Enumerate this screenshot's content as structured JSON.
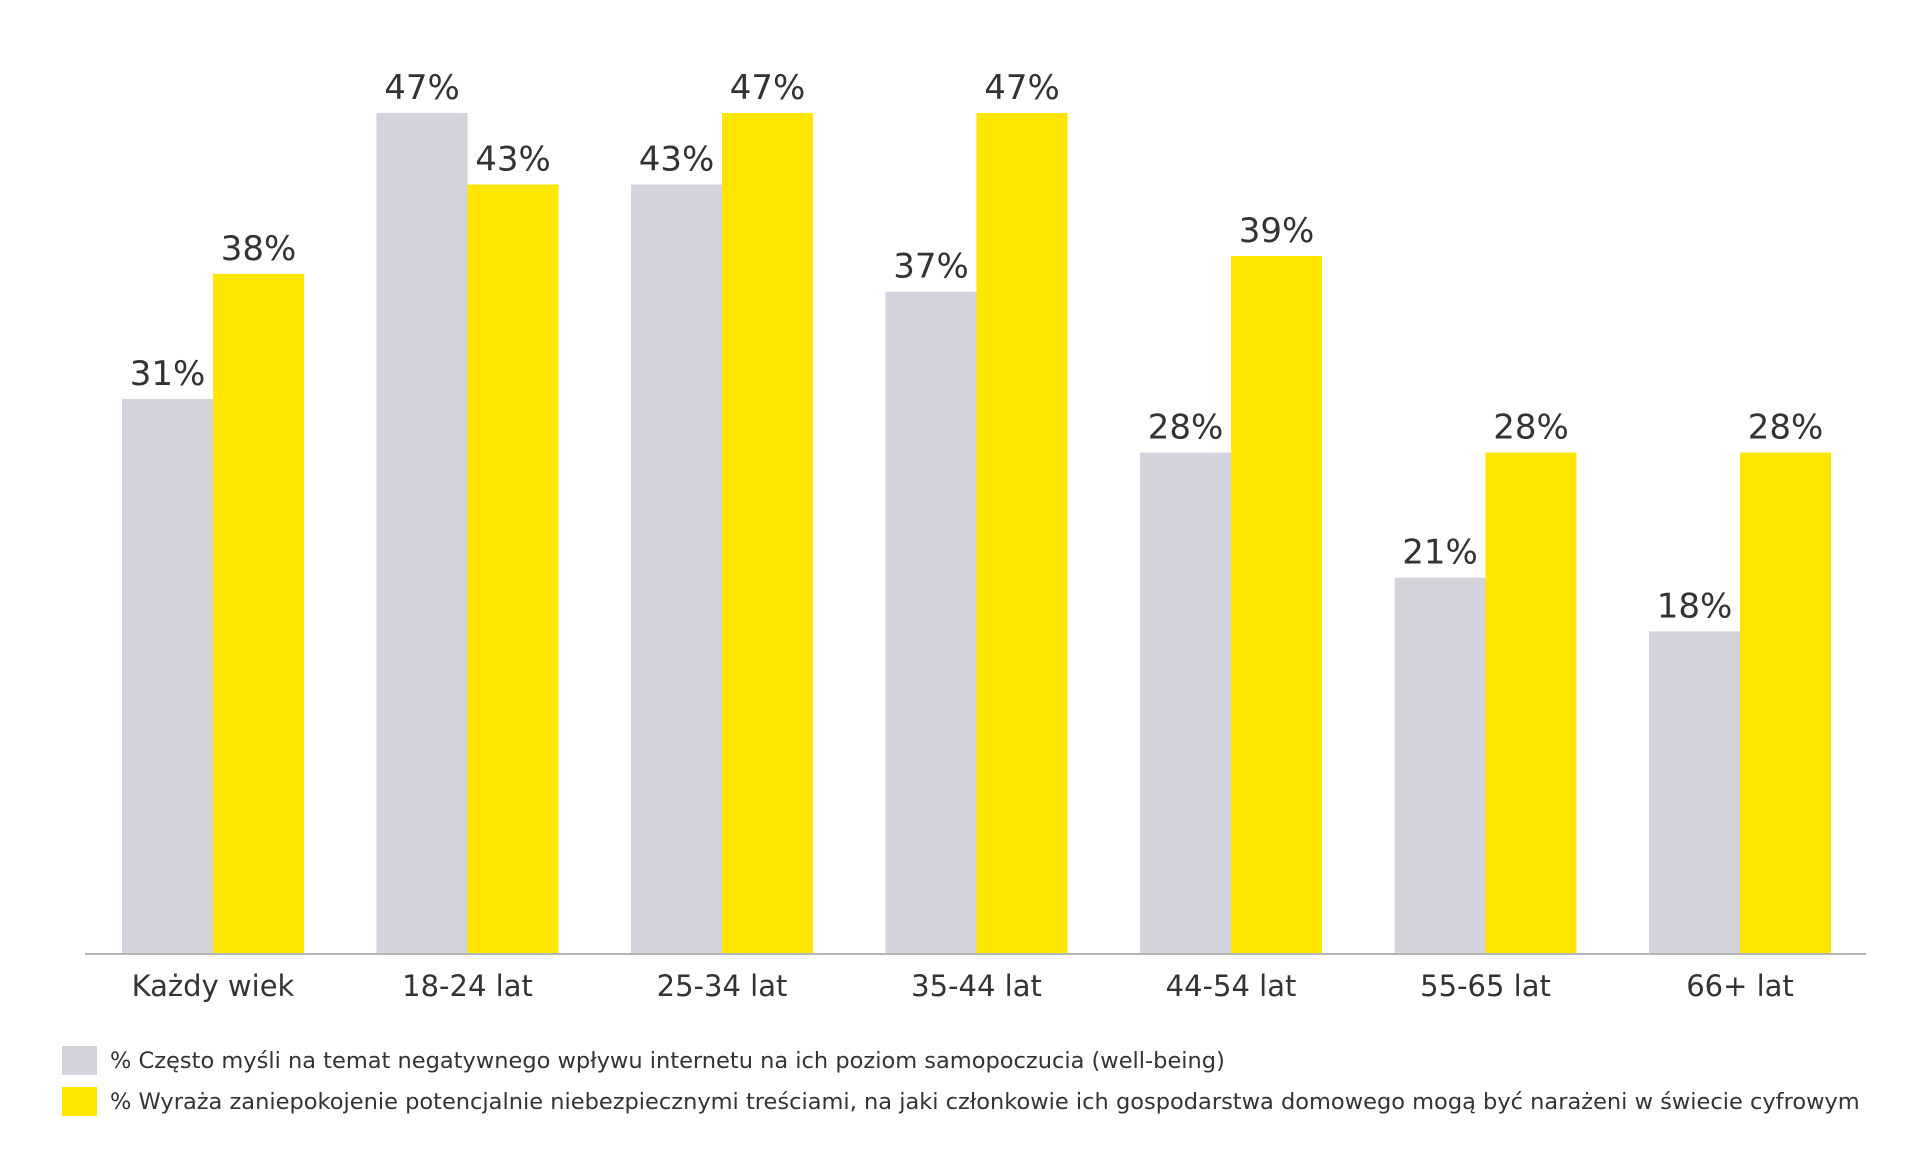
{
  "chart_data": {
    "type": "bar",
    "categories": [
      "Każdy wiek",
      "18-24 lat",
      "25-34 lat",
      "35-44 lat",
      "44-54 lat",
      "55-65 lat",
      "66+ lat"
    ],
    "series": [
      {
        "name": "% Często myśli na temat negatywnego wpływu internetu na ich poziom samopoczucia (well-being)",
        "color": "#d3d3db",
        "values": [
          31,
          47,
          43,
          37,
          28,
          21,
          18
        ],
        "labels": [
          "31%",
          "47%",
          "43%",
          "37%",
          "28%",
          "21%",
          "18%"
        ]
      },
      {
        "name": "% Wyraża zaniepokojenie potencjalnie niebezpiecznymi treściami, na jaki członkowie ich gospodarstwa domowego mogą być narażeni w świecie cyfrowym",
        "color": "#ffe600",
        "values": [
          38,
          43,
          47,
          47,
          39,
          28,
          28
        ],
        "labels": [
          "38%",
          "43%",
          "47%",
          "47%",
          "39%",
          "28%",
          "28%"
        ]
      }
    ],
    "ylim": [
      0,
      47
    ],
    "grid": false,
    "legend_position": "bottom-left"
  }
}
